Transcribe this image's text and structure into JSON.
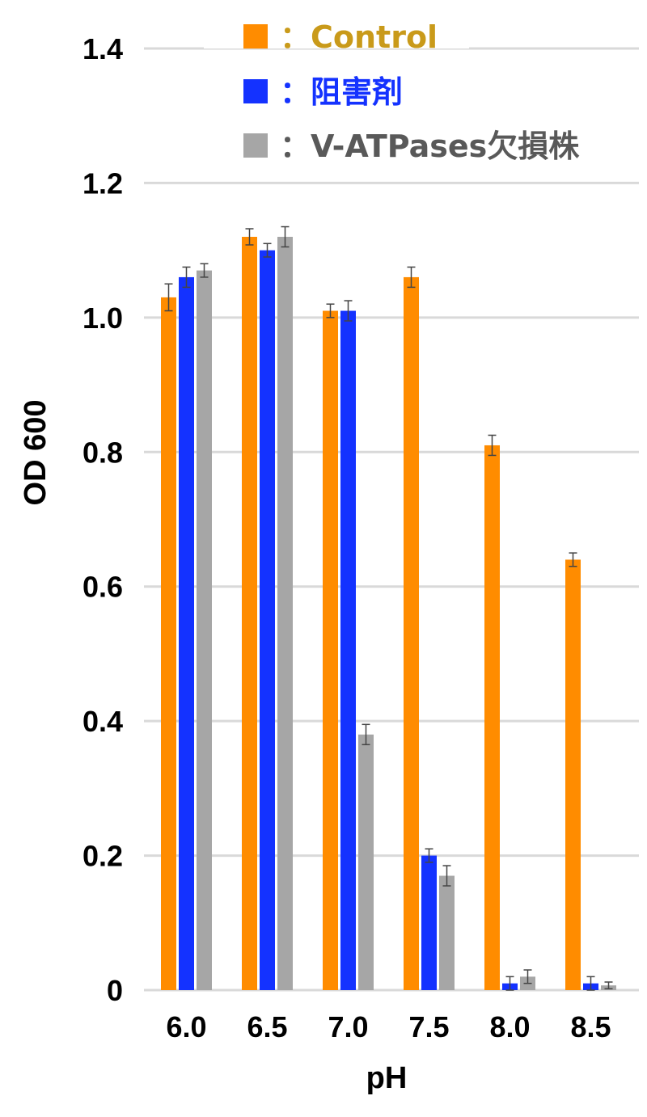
{
  "chart_data": {
    "type": "bar",
    "title": "",
    "xlabel": "pH",
    "ylabel": "OD 600",
    "categories": [
      "6.0",
      "6.5",
      "7.0",
      "7.5",
      "8.0",
      "8.5"
    ],
    "ylim": [
      0,
      1.4
    ],
    "yticks": [
      "0",
      "0.2",
      "0.4",
      "0.6",
      "0.8",
      "1.0",
      "1.2",
      "1.4"
    ],
    "grid": true,
    "legend_position": "top",
    "series": [
      {
        "name": "：Control",
        "color": "#FF8C00",
        "label_color": "#C99A1A",
        "values": [
          1.03,
          1.12,
          1.01,
          1.06,
          0.81,
          0.64
        ],
        "errors": [
          0.02,
          0.012,
          0.01,
          0.015,
          0.015,
          0.01
        ]
      },
      {
        "name": "：阻害剤",
        "color": "#1432FF",
        "label_color": "#1432FF",
        "values": [
          1.06,
          1.1,
          1.01,
          0.2,
          0.01,
          0.01
        ],
        "errors": [
          0.015,
          0.01,
          0.015,
          0.01,
          0.01,
          0.01
        ]
      },
      {
        "name": "：V-ATPases欠損株",
        "color": "#A6A6A6",
        "label_color": "#595959",
        "values": [
          1.07,
          1.12,
          0.38,
          0.17,
          0.02,
          0.007
        ],
        "errors": [
          0.01,
          0.015,
          0.015,
          0.015,
          0.01,
          0.005
        ]
      }
    ]
  }
}
